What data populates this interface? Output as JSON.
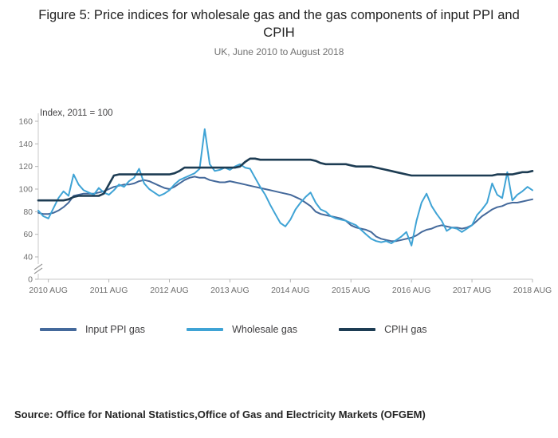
{
  "figure": {
    "title": "Figure 5: Price indices for wholesale gas and the gas components of input PPI and CPIH",
    "subtitle": "UK, June 2010 to August 2018",
    "source": "Source: Office for National Statistics,Office of Gas and Electricity Markets (OFGEM)"
  },
  "chart_data": {
    "type": "line",
    "title": "Figure 5: Price indices for wholesale gas and the gas components of input PPI and CPIH",
    "subtitle": "UK, June 2010 to August 2018",
    "ylabel": "Index, 2011 = 100",
    "ylim": [
      40,
      160
    ],
    "y_ticks": [
      0,
      40,
      60,
      80,
      100,
      120,
      140,
      160
    ],
    "y_axis_break_between": [
      0,
      40
    ],
    "grid": false,
    "legend_position": "bottom",
    "x_frequency": "monthly",
    "x_tick_labels": [
      "2010 AUG",
      "2011 AUG",
      "2012 AUG",
      "2013 AUG",
      "2014 AUG",
      "2015 AUG",
      "2016 AUG",
      "2017 AUG",
      "2018 AUG"
    ],
    "x_tick_indices": [
      2,
      14,
      26,
      38,
      50,
      62,
      74,
      86,
      98
    ],
    "x": [
      "2010-06",
      "2010-07",
      "2010-08",
      "2010-09",
      "2010-10",
      "2010-11",
      "2010-12",
      "2011-01",
      "2011-02",
      "2011-03",
      "2011-04",
      "2011-05",
      "2011-06",
      "2011-07",
      "2011-08",
      "2011-09",
      "2011-10",
      "2011-11",
      "2011-12",
      "2012-01",
      "2012-02",
      "2012-03",
      "2012-04",
      "2012-05",
      "2012-06",
      "2012-07",
      "2012-08",
      "2012-09",
      "2012-10",
      "2012-11",
      "2012-12",
      "2013-01",
      "2013-02",
      "2013-03",
      "2013-04",
      "2013-05",
      "2013-06",
      "2013-07",
      "2013-08",
      "2013-09",
      "2013-10",
      "2013-11",
      "2013-12",
      "2014-01",
      "2014-02",
      "2014-03",
      "2014-04",
      "2014-05",
      "2014-06",
      "2014-07",
      "2014-08",
      "2014-09",
      "2014-10",
      "2014-11",
      "2014-12",
      "2015-01",
      "2015-02",
      "2015-03",
      "2015-04",
      "2015-05",
      "2015-06",
      "2015-07",
      "2015-08",
      "2015-09",
      "2015-10",
      "2015-11",
      "2015-12",
      "2016-01",
      "2016-02",
      "2016-03",
      "2016-04",
      "2016-05",
      "2016-06",
      "2016-07",
      "2016-08",
      "2016-09",
      "2016-10",
      "2016-11",
      "2016-12",
      "2017-01",
      "2017-02",
      "2017-03",
      "2017-04",
      "2017-05",
      "2017-06",
      "2017-07",
      "2017-08",
      "2017-09",
      "2017-10",
      "2017-11",
      "2017-12",
      "2018-01",
      "2018-02",
      "2018-03",
      "2018-04",
      "2018-05",
      "2018-06",
      "2018-07",
      "2018-08"
    ],
    "series": [
      {
        "name": "Input PPI gas",
        "color": "#44699b",
        "values": [
          79,
          78,
          78,
          79,
          81,
          84,
          88,
          94,
          95,
          96,
          96,
          96,
          97,
          98,
          100,
          102,
          103,
          104,
          104,
          105,
          107,
          108,
          107,
          105,
          103,
          101,
          100,
          102,
          105,
          108,
          110,
          111,
          110,
          110,
          108,
          107,
          106,
          106,
          107,
          106,
          105,
          104,
          103,
          102,
          101,
          100,
          99,
          98,
          97,
          96,
          95,
          93,
          91,
          88,
          85,
          80,
          78,
          77,
          76,
          75,
          74,
          72,
          68,
          66,
          65,
          64,
          62,
          58,
          56,
          55,
          54,
          54,
          55,
          56,
          57,
          59,
          62,
          64,
          65,
          67,
          68,
          67,
          66,
          66,
          65,
          66,
          68,
          72,
          76,
          79,
          82,
          84,
          85,
          87,
          88,
          88,
          89,
          90,
          91
        ]
      },
      {
        "name": "Wholesale gas",
        "color": "#3fa3d5",
        "values": [
          81,
          76,
          74,
          83,
          92,
          98,
          94,
          113,
          104,
          99,
          97,
          95,
          101,
          97,
          95,
          99,
          104,
          102,
          107,
          110,
          118,
          105,
          100,
          97,
          94,
          96,
          99,
          104,
          108,
          110,
          112,
          114,
          118,
          153,
          122,
          116,
          117,
          119,
          117,
          120,
          122,
          119,
          118,
          110,
          102,
          95,
          86,
          78,
          70,
          67,
          73,
          82,
          88,
          93,
          97,
          88,
          82,
          80,
          76,
          74,
          73,
          72,
          70,
          68,
          64,
          60,
          56,
          54,
          53,
          54,
          52,
          55,
          58,
          62,
          50,
          72,
          88,
          96,
          85,
          78,
          72,
          63,
          66,
          65,
          62,
          65,
          68,
          77,
          82,
          88,
          105,
          95,
          92,
          115,
          90,
          95,
          98,
          102,
          99
        ]
      },
      {
        "name": "CPIH gas",
        "color": "#1d3c53",
        "values": [
          90,
          90,
          90,
          90,
          90,
          90,
          91,
          93,
          94,
          94,
          94,
          94,
          94,
          96,
          104,
          112,
          113,
          113,
          113,
          113,
          113,
          113,
          113,
          113,
          113,
          113,
          113,
          114,
          116,
          119,
          119,
          119,
          119,
          119,
          119,
          119,
          119,
          119,
          119,
          119,
          120,
          124,
          127,
          127,
          126,
          126,
          126,
          126,
          126,
          126,
          126,
          126,
          126,
          126,
          126,
          125,
          123,
          122,
          122,
          122,
          122,
          122,
          121,
          120,
          120,
          120,
          120,
          119,
          118,
          117,
          116,
          115,
          114,
          113,
          112,
          112,
          112,
          112,
          112,
          112,
          112,
          112,
          112,
          112,
          112,
          112,
          112,
          112,
          112,
          112,
          112,
          113,
          113,
          113,
          113,
          114,
          115,
          115,
          116
        ]
      }
    ]
  }
}
